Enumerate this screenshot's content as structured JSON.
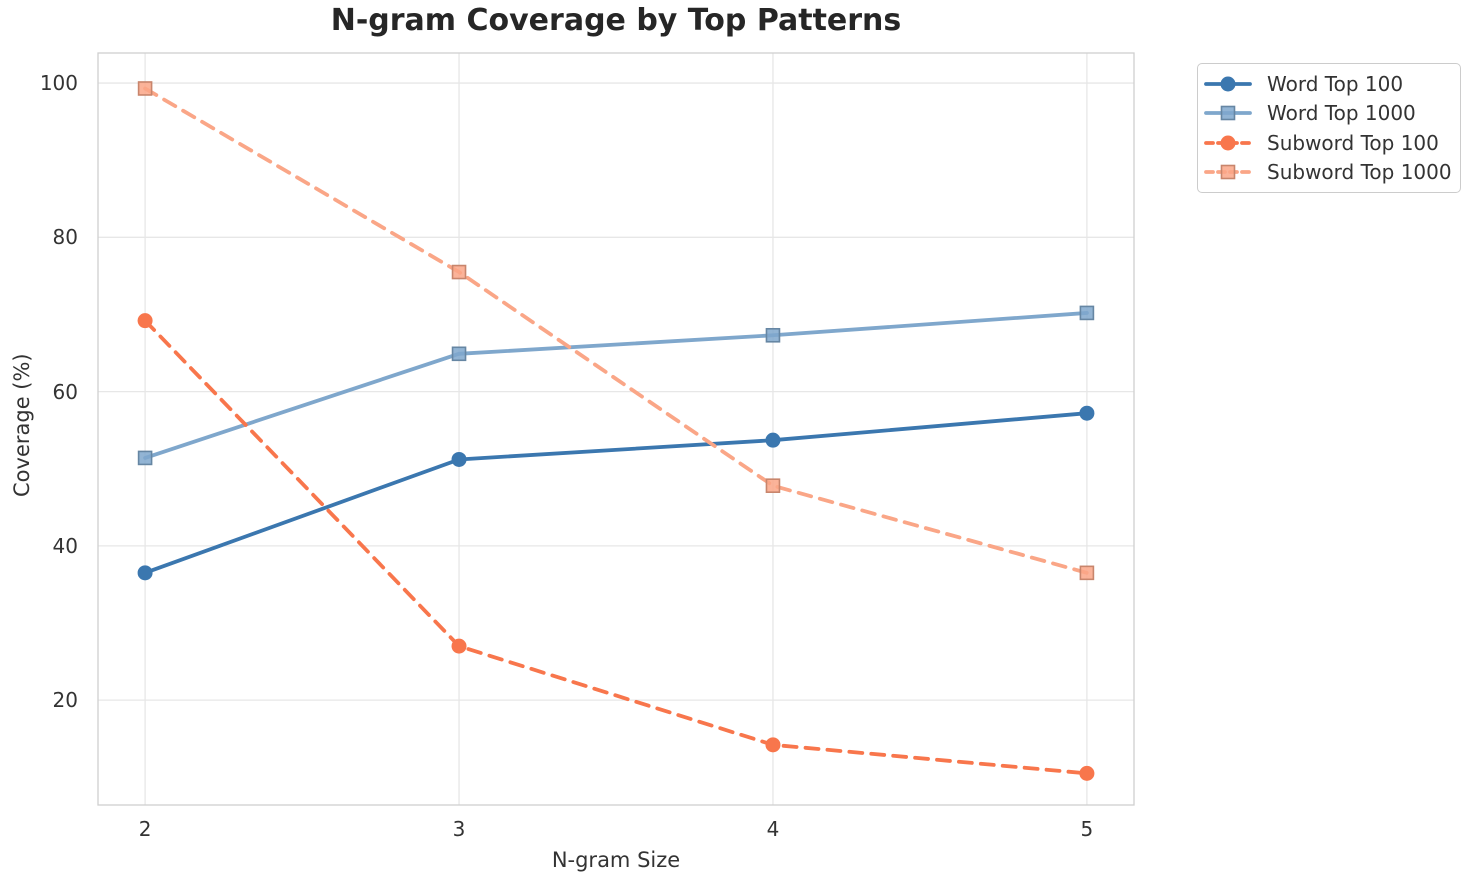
{
  "chart_data": {
    "type": "line",
    "title": "N-gram Coverage by Top Patterns",
    "xlabel": "N-gram Size",
    "ylabel": "Coverage (%)",
    "x": [
      2,
      3,
      4,
      5
    ],
    "xticks": [
      "2",
      "3",
      "4",
      "5"
    ],
    "yticks": [
      20,
      40,
      60,
      80,
      100
    ],
    "xlim": [
      1.85,
      5.15
    ],
    "ylim": [
      6.4,
      103.9
    ],
    "grid": true,
    "legend_position": "outside-top-right",
    "series": [
      {
        "name": "Word Top 100",
        "color": "#3B77AF",
        "linestyle": "solid",
        "marker": "circle",
        "values": [
          36.5,
          51.2,
          53.7,
          57.2
        ]
      },
      {
        "name": "Word Top 1000",
        "color": "#7FA7CC",
        "linestyle": "solid",
        "marker": "square",
        "values": [
          51.4,
          64.9,
          67.3,
          70.2
        ]
      },
      {
        "name": "Subword Top 100",
        "color": "#F8764C",
        "linestyle": "dashed",
        "marker": "circle",
        "values": [
          69.2,
          27.0,
          14.2,
          10.5
        ]
      },
      {
        "name": "Subword Top 1000",
        "color": "#FAA687",
        "linestyle": "dashed",
        "marker": "square",
        "values": [
          99.3,
          75.5,
          47.8,
          36.5
        ]
      }
    ]
  }
}
